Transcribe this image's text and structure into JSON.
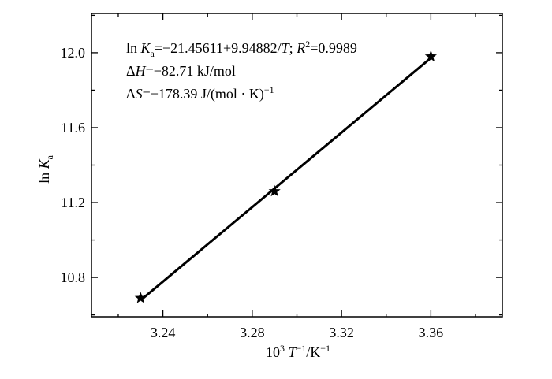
{
  "chart_data": {
    "type": "scatter",
    "x": [
      3.23,
      3.29,
      3.36
    ],
    "y": [
      10.69,
      11.26,
      11.98
    ],
    "fit_line": {
      "x": [
        3.23,
        3.36
      ],
      "y": [
        10.678,
        11.972
      ]
    },
    "marker": "star",
    "xlim": [
      3.208,
      3.392
    ],
    "ylim": [
      10.59,
      12.21
    ],
    "xticks": [
      "3.24",
      "3.28",
      "3.32",
      "3.36"
    ],
    "xtick_values": [
      3.24,
      3.28,
      3.32,
      3.36
    ],
    "yticks": [
      "10.8",
      "11.2",
      "11.6",
      "12.0"
    ],
    "ytick_values": [
      10.8,
      11.2,
      11.6,
      12.0
    ],
    "xlabel": {
      "pre": "10",
      "sup1": "3",
      "var": " T",
      "sup2": "−1",
      "mid": "/K",
      "sup3": "−1"
    },
    "ylabel": {
      "pre": "ln ",
      "var": "K",
      "sub": "a"
    },
    "annotations": {
      "eq": {
        "l1": "ln ",
        "v1": "K",
        "s1": "a",
        "l2": "=−21.45611+9.94882/",
        "v2": "T",
        "l3": "; ",
        "v3": "R",
        "sup": "2",
        "l4": "=0.9989"
      },
      "dh": {
        "delta": "Δ",
        "v": "H",
        "rest": "=−82.71  kJ/mol"
      },
      "ds": {
        "delta": "Δ",
        "v": "S",
        "rest": "=−178.39 J/(mol · K)",
        "sup": "−1"
      }
    },
    "grid": false
  }
}
